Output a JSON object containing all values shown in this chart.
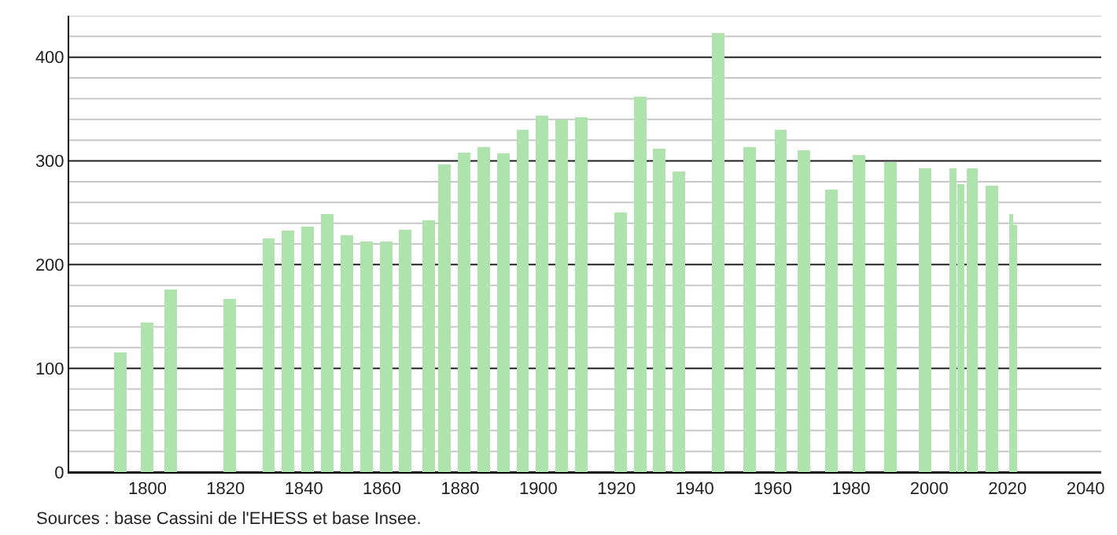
{
  "chart_data": {
    "type": "bar",
    "x": [
      1793,
      1800,
      1806,
      1821,
      1831,
      1836,
      1841,
      1846,
      1851,
      1856,
      1861,
      1866,
      1872,
      1876,
      1881,
      1886,
      1891,
      1896,
      1901,
      1906,
      1911,
      1921,
      1926,
      1931,
      1936,
      1946,
      1954,
      1962,
      1968,
      1975,
      1982,
      1990,
      1999,
      2006,
      2008,
      2011,
      2016,
      2021,
      2022
    ],
    "values": [
      115,
      144,
      176,
      167,
      225,
      233,
      237,
      249,
      228,
      222,
      222,
      234,
      243,
      297,
      308,
      313,
      307,
      330,
      344,
      340,
      342,
      250,
      362,
      312,
      290,
      423,
      313,
      330,
      310,
      272,
      306,
      299,
      293,
      293,
      278,
      293,
      276,
      249,
      238
    ],
    "color": "#aee3ae",
    "xlim": [
      1780,
      2044
    ],
    "xticks": [
      1800,
      1820,
      1840,
      1860,
      1880,
      1900,
      1920,
      1940,
      1960,
      1980,
      2000,
      2020,
      2040
    ],
    "ylim": [
      0,
      440
    ],
    "yticks": [
      0,
      {
        "value": 20,
        "label": null
      },
      {
        "value": 40,
        "label": null
      },
      {
        "value": 60,
        "label": null
      },
      {
        "value": 80,
        "label": null
      },
      100,
      {
        "value": 120,
        "label": null
      },
      {
        "value": 140,
        "label": null
      },
      {
        "value": 160,
        "label": null
      },
      {
        "value": 180,
        "label": null
      },
      200,
      {
        "value": 220,
        "label": null
      },
      {
        "value": 240,
        "label": null
      },
      {
        "value": 260,
        "label": null
      },
      {
        "value": 280,
        "label": null
      },
      300,
      {
        "value": 320,
        "label": null
      },
      {
        "value": 340,
        "label": null
      },
      {
        "value": 360,
        "label": null
      },
      {
        "value": 380,
        "label": null
      },
      400,
      {
        "value": 420,
        "label": null
      },
      {
        "value": 440,
        "label": null
      }
    ],
    "grid": "y",
    "annotations": [
      "Sources : base Cassini de l'EHESS et base Insee."
    ]
  }
}
